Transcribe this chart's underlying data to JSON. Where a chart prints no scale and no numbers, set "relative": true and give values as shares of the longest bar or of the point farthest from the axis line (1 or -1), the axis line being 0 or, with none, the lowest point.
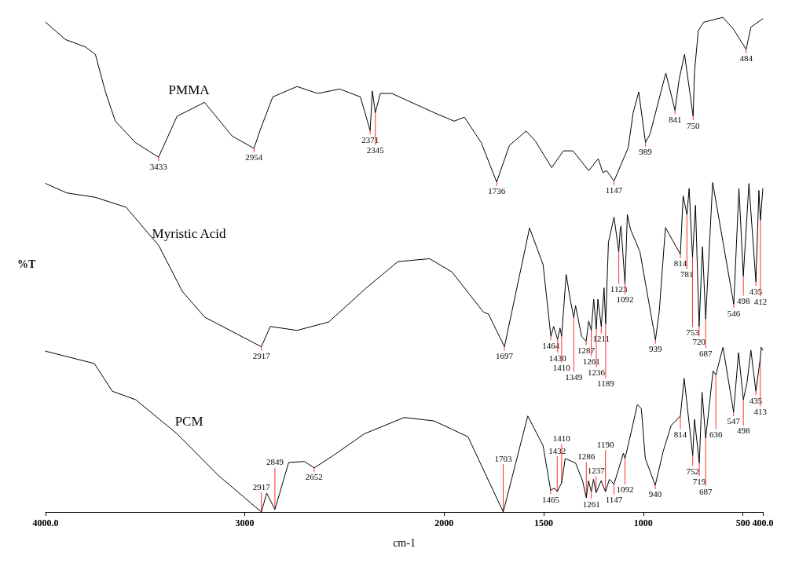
{
  "chart_data": {
    "type": "line",
    "relative": true,
    "xlabel": "cm-1",
    "ylabel": "%T",
    "xlim": [
      4000,
      400
    ],
    "xticks": [
      {
        "value": 4000,
        "label": "4000.0"
      },
      3000,
      2000,
      1500,
      1000,
      500,
      {
        "value": 400,
        "label": "400.0"
      }
    ],
    "grid": false,
    "legend": false,
    "marker": "none",
    "line_style": "solid",
    "series": [
      {
        "name": "PMMA",
        "color": "#000000",
        "x": [
          4000,
          3900,
          3800,
          3750,
          3700,
          3650,
          3550,
          3433,
          3340,
          3202,
          3064,
          2954,
          2921,
          2860,
          2738,
          2634,
          2524,
          2420,
          2371,
          2360,
          2345,
          2320,
          2262,
          2049,
          1949,
          1898,
          1814,
          1736,
          1672,
          1588,
          1542,
          1460,
          1401,
          1353,
          1274,
          1226,
          1203,
          1184,
          1147,
          1076,
          1051,
          1023,
          989,
          966,
          924,
          887,
          841,
          820,
          793,
          750,
          743,
          724,
          697,
          600,
          546,
          484,
          460,
          400
        ],
        "values": [
          0.99,
          0.955,
          0.94,
          0.925,
          0.85,
          0.79,
          0.747,
          0.717,
          0.8,
          0.828,
          0.76,
          0.735,
          0.774,
          0.839,
          0.86,
          0.846,
          0.855,
          0.839,
          0.771,
          0.851,
          0.807,
          0.846,
          0.846,
          0.807,
          0.79,
          0.798,
          0.747,
          0.667,
          0.741,
          0.77,
          0.75,
          0.696,
          0.73,
          0.73,
          0.69,
          0.714,
          0.686,
          0.69,
          0.669,
          0.736,
          0.807,
          0.849,
          0.747,
          0.764,
          0.83,
          0.887,
          0.812,
          0.875,
          0.925,
          0.8,
          0.89,
          0.973,
          0.99,
          1,
          0.975,
          0.935,
          0.98,
          0.997
        ]
      },
      {
        "name": "Myristic Acid",
        "color": "#000000",
        "x": [
          4000,
          3894,
          3750,
          3596,
          3431,
          3314,
          3202,
          2917,
          2872,
          2738,
          2579,
          2390,
          2232,
          2073,
          1960,
          1802,
          1777,
          1697,
          1571,
          1503,
          1464,
          1450,
          1430,
          1418,
          1410,
          1387,
          1367,
          1349,
          1340,
          1310,
          1287,
          1274,
          1261,
          1249,
          1236,
          1228,
          1211,
          1197,
          1189,
          1175,
          1147,
          1123,
          1116,
          1112,
          1092,
          1080,
          1064,
          1017,
          939,
          920,
          889,
          814,
          800,
          781,
          770,
          753,
          738,
          720,
          703,
          687,
          652,
          546,
          520,
          498,
          470,
          435,
          420,
          412,
          400
        ],
        "values": [
          0.664,
          0.645,
          0.636,
          0.616,
          0.538,
          0.446,
          0.394,
          0.334,
          0.375,
          0.367,
          0.384,
          0.453,
          0.506,
          0.512,
          0.485,
          0.404,
          0.4,
          0.334,
          0.574,
          0.5,
          0.355,
          0.375,
          0.349,
          0.372,
          0.355,
          0.48,
          0.43,
          0.393,
          0.417,
          0.355,
          0.345,
          0.386,
          0.367,
          0.43,
          0.37,
          0.43,
          0.375,
          0.453,
          0.38,
          0.545,
          0.596,
          0.526,
          0.571,
          0.578,
          0.461,
          0.601,
          0.571,
          0.526,
          0.348,
          0.405,
          0.575,
          0.521,
          0.639,
          0.601,
          0.654,
          0.515,
          0.62,
          0.375,
          0.536,
          0.39,
          0.666,
          0.42,
          0.654,
          0.477,
          0.664,
          0.465,
          0.65,
          0.59,
          0.654
        ]
      },
      {
        "name": "PCM",
        "color": "#000000",
        "x": [
          4000,
          3755,
          3665,
          3548,
          3340,
          3133,
          2917,
          2890,
          2849,
          2780,
          2700,
          2652,
          2560,
          2400,
          2200,
          2050,
          1880,
          1780,
          1703,
          1580,
          1503,
          1465,
          1445,
          1432,
          1410,
          1392,
          1340,
          1305,
          1286,
          1275,
          1261,
          1250,
          1237,
          1212,
          1190,
          1170,
          1147,
          1100,
          1092,
          1068,
          1030,
          1010,
          990,
          940,
          900,
          860,
          814,
          795,
          752,
          743,
          719,
          705,
          687,
          650,
          636,
          600,
          547,
          522,
          498,
          480,
          460,
          435,
          413,
          408,
          400
        ],
        "values": [
          0.325,
          0.3,
          0.244,
          0.227,
          0.158,
          0.074,
          0,
          0.038,
          0.005,
          0.1,
          0.102,
          0.089,
          0.113,
          0.158,
          0.191,
          0.184,
          0.152,
          0.066,
          0,
          0.194,
          0.134,
          0.044,
          0.048,
          0.041,
          0.059,
          0.108,
          0.099,
          0.063,
          0.029,
          0.063,
          0.041,
          0.066,
          0.039,
          0.063,
          0.041,
          0.066,
          0.056,
          0.119,
          0.108,
          0.149,
          0.217,
          0.209,
          0.108,
          0.054,
          0.123,
          0.175,
          0.194,
          0.27,
          0.114,
          0.187,
          0.099,
          0.242,
          0.149,
          0.285,
          0.277,
          0.333,
          0.202,
          0.322,
          0.227,
          0.26,
          0.327,
          0.244,
          0.31,
          0.333,
          0.327
        ]
      }
    ],
    "annotations": [
      {
        "text": "3433",
        "x": 3433,
        "y": 0.717
      },
      {
        "text": "2954",
        "x": 2954,
        "y": 0.735
      },
      {
        "text": "2371",
        "x": 2371,
        "y": 0.771
      },
      {
        "text": "2345",
        "x": 2345,
        "y": 0.807
      },
      {
        "text": "1736",
        "x": 1736,
        "y": 0.667
      },
      {
        "text": "1147",
        "x": 1147,
        "y": 0.669
      },
      {
        "text": "989",
        "x": 989,
        "y": 0.747
      },
      {
        "text": "841",
        "x": 841,
        "y": 0.812
      },
      {
        "text": "750",
        "x": 750,
        "y": 0.8
      },
      {
        "text": "484",
        "x": 484,
        "y": 0.935
      },
      {
        "text": "2917",
        "x": 2917,
        "y": 0.334
      },
      {
        "text": "1697",
        "x": 1697,
        "y": 0.334
      },
      {
        "text": "1464",
        "x": 1464,
        "y": 0.355
      },
      {
        "text": "1430",
        "x": 1430,
        "y": 0.349
      },
      {
        "text": "1410",
        "x": 1410,
        "y": 0.355
      },
      {
        "text": "1349",
        "x": 1349,
        "y": 0.393
      },
      {
        "text": "1287",
        "x": 1287,
        "y": 0.345
      },
      {
        "text": "1261",
        "x": 1261,
        "y": 0.367
      },
      {
        "text": "1236",
        "x": 1236,
        "y": 0.37
      },
      {
        "text": "1211",
        "x": 1211,
        "y": 0.375
      },
      {
        "text": "1189",
        "x": 1189,
        "y": 0.38
      },
      {
        "text": "1123",
        "x": 1123,
        "y": 0.526
      },
      {
        "text": "1092",
        "x": 1092,
        "y": 0.461
      },
      {
        "text": "939",
        "x": 939,
        "y": 0.348
      },
      {
        "text": "814",
        "x": 814,
        "y": 0.521
      },
      {
        "text": "781",
        "x": 781,
        "y": 0.601
      },
      {
        "text": "753",
        "x": 753,
        "y": 0.515
      },
      {
        "text": "720",
        "x": 720,
        "y": 0.375
      },
      {
        "text": "687",
        "x": 687,
        "y": 0.39
      },
      {
        "text": "546",
        "x": 546,
        "y": 0.42
      },
      {
        "text": "498",
        "x": 498,
        "y": 0.477
      },
      {
        "text": "435",
        "x": 435,
        "y": 0.465
      },
      {
        "text": "412",
        "x": 412,
        "y": 0.59
      },
      {
        "text": "2917",
        "x": 2917,
        "y": 0
      },
      {
        "text": "2849",
        "x": 2849,
        "y": 0.005
      },
      {
        "text": "2652",
        "x": 2652,
        "y": 0.089
      },
      {
        "text": "1703",
        "x": 1703,
        "y": 0
      },
      {
        "text": "1465",
        "x": 1465,
        "y": 0.044
      },
      {
        "text": "1432",
        "x": 1432,
        "y": 0.041
      },
      {
        "text": "1410",
        "x": 1410,
        "y": 0.059
      },
      {
        "text": "1286",
        "x": 1286,
        "y": 0.029
      },
      {
        "text": "1261",
        "x": 1261,
        "y": 0.041
      },
      {
        "text": "1237",
        "x": 1237,
        "y": 0.039
      },
      {
        "text": "1190",
        "x": 1190,
        "y": 0.041
      },
      {
        "text": "1147",
        "x": 1147,
        "y": 0.056
      },
      {
        "text": "1092",
        "x": 1092,
        "y": 0.108
      },
      {
        "text": "940",
        "x": 940,
        "y": 0.054
      },
      {
        "text": "814",
        "x": 814,
        "y": 0.194
      },
      {
        "text": "752",
        "x": 752,
        "y": 0.114
      },
      {
        "text": "719",
        "x": 719,
        "y": 0.099
      },
      {
        "text": "687",
        "x": 687,
        "y": 0.149
      },
      {
        "text": "636",
        "x": 636,
        "y": 0.277
      },
      {
        "text": "547",
        "x": 547,
        "y": 0.202
      },
      {
        "text": "498",
        "x": 498,
        "y": 0.227
      },
      {
        "text": "435",
        "x": 435,
        "y": 0.244
      },
      {
        "text": "413",
        "x": 413,
        "y": 0.31
      }
    ]
  }
}
